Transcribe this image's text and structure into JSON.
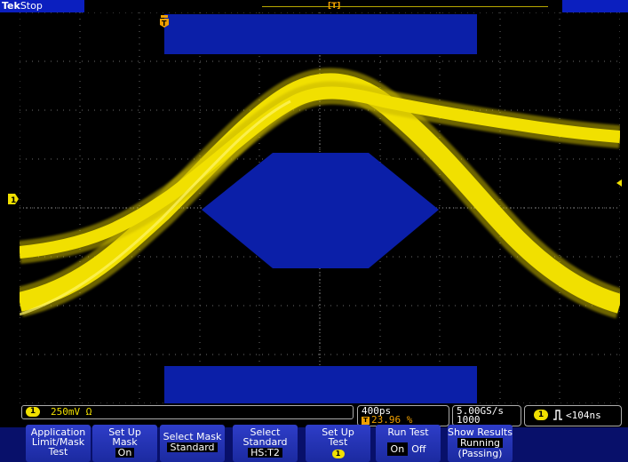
{
  "header": {
    "brand": "Tek",
    "state": "Stop"
  },
  "colors": {
    "trace": "#f1e000",
    "mask": "#0b1fa8",
    "grid": "#6b6b6b",
    "trigger": "#f0a000"
  },
  "markers": {
    "channel": "1",
    "trigger": "T"
  },
  "readouts": {
    "ch1_badge": "1",
    "ch1_scale": "250mV Ω",
    "timebase": "400ps",
    "trigger_pos": "23.96 %",
    "trigger_pos_badge": "T",
    "sample_rate": "5.00GS/s",
    "record_length": "1000 points",
    "trigger_badge": "1",
    "trigger_text": "<104ns"
  },
  "menu": {
    "buttons": [
      {
        "line1": "Application",
        "line2": "Limit/Mask",
        "line3": "Test"
      },
      {
        "line1": "Set Up",
        "line2": "Mask",
        "value": "On"
      },
      {
        "line1": "Select Mask",
        "value": "Standard"
      },
      {
        "line1": "Select",
        "line2": "Standard",
        "value": "HS:T2"
      },
      {
        "line1": "Set Up",
        "line2": "Test",
        "badge": "1"
      },
      {
        "line1": "Run Test",
        "on": "On",
        "off": "Off"
      },
      {
        "line1": "Show Results",
        "value": "Running",
        "line3": "(Passing)"
      }
    ]
  }
}
